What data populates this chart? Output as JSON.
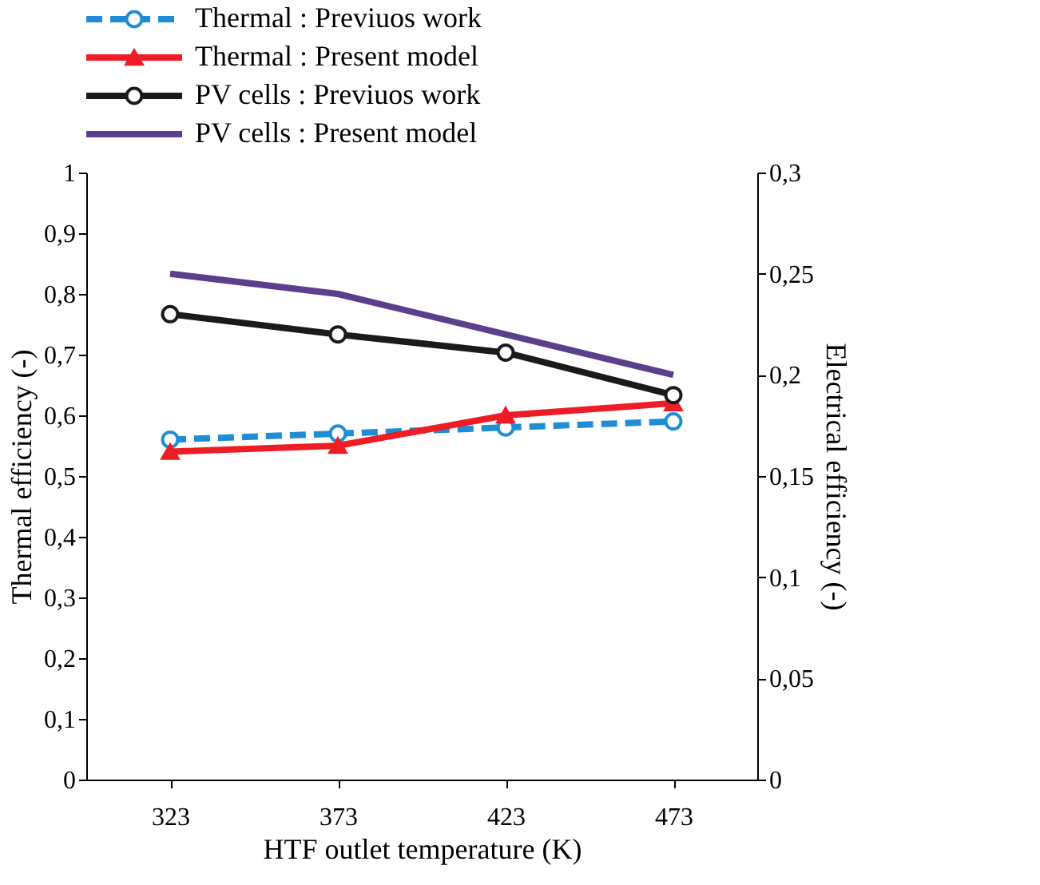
{
  "chart_data": {
    "type": "line",
    "xlabel": "HTF outlet temperature (K)",
    "ylabel": "Thermal efficiency (-)",
    "y2label": "Electrical efficiency (-)",
    "categories": [
      "323",
      "373",
      "423",
      "473"
    ],
    "ylim": [
      0,
      1
    ],
    "yticks": [
      0,
      {
        "value": 0.1,
        "label": "0,1"
      },
      {
        "value": 0.2,
        "label": "0,2"
      },
      {
        "value": 0.3,
        "label": "0,3"
      },
      {
        "value": 0.4,
        "label": "0,4"
      },
      {
        "value": 0.5,
        "label": "0,5"
      },
      {
        "value": 0.6,
        "label": "0,6"
      },
      {
        "value": 0.7,
        "label": "0,7"
      },
      {
        "value": 0.8,
        "label": "0,8"
      },
      {
        "value": 0.9,
        "label": "0,9"
      },
      1
    ],
    "y2lim": [
      0,
      0.3
    ],
    "y2ticks": [
      0,
      {
        "value": 0.05,
        "label": "0,05"
      },
      {
        "value": 0.1,
        "label": "0,1"
      },
      {
        "value": 0.15,
        "label": "0,15"
      },
      {
        "value": 0.2,
        "label": "0,2"
      },
      {
        "value": 0.25,
        "label": "0,25"
      },
      {
        "value": 0.3,
        "label": "0,3"
      }
    ],
    "legend": "top",
    "grid": false,
    "series": [
      {
        "name": "Thermal : Previuos work",
        "color": "#1f8dd6",
        "values": [
          0.56,
          0.57,
          0.58,
          0.59
        ],
        "marker": "circle",
        "line_style": "dashed"
      },
      {
        "name": "Thermal : Present model",
        "color": "#ee1c25",
        "values": [
          0.54,
          0.55,
          0.6,
          0.62
        ],
        "marker": "triangle",
        "line_style": "solid"
      },
      {
        "name": "PV cells : Previuos work",
        "color": "#1a1a1a",
        "values": [
          0.23,
          0.22,
          0.211,
          0.19
        ],
        "marker": "circle",
        "line_style": "solid",
        "axis": "y2"
      },
      {
        "name": "PV cells : Present model",
        "color": "#5b3f8c",
        "values": [
          0.25,
          0.24,
          0.22,
          0.2
        ],
        "marker": "none",
        "line_style": "solid",
        "axis": "y2"
      }
    ]
  }
}
